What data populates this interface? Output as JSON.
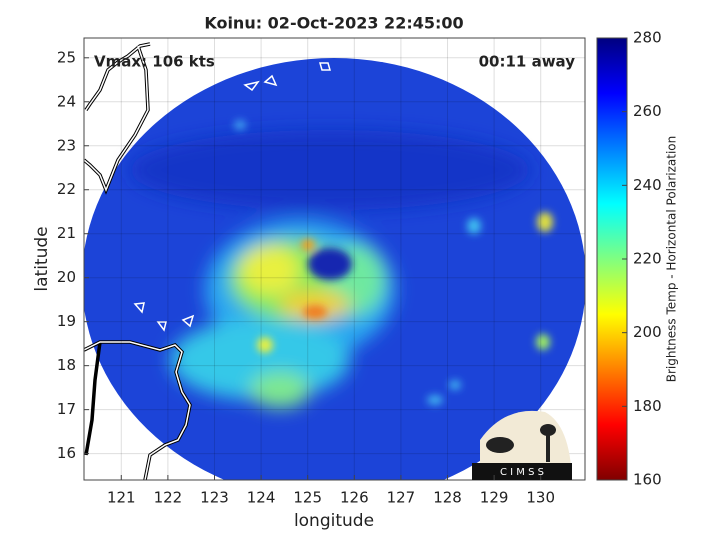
{
  "chart_data": {
    "type": "map",
    "title": "Koinu: 02-Oct-2023 22:45:00",
    "annotations": [
      "Vmax: 106 kts",
      "00:11 away"
    ],
    "x_label": "longitude",
    "y_label": "latitude",
    "xlim": [
      120.2,
      130.95
    ],
    "ylim": [
      15.4,
      25.45
    ],
    "xticks": [
      121,
      122,
      123,
      124,
      125,
      126,
      127,
      128,
      129,
      130
    ],
    "yticks": [
      16,
      17,
      18,
      19,
      20,
      21,
      22,
      23,
      24,
      25
    ],
    "grid": true,
    "colorbar": {
      "label": "Brightness Temp - Horizontal Polarization",
      "lim": [
        160,
        280
      ],
      "ticks": [
        160,
        180,
        200,
        220,
        240,
        260,
        280
      ],
      "colormap": "jet"
    },
    "logo": "C I M S S"
  }
}
